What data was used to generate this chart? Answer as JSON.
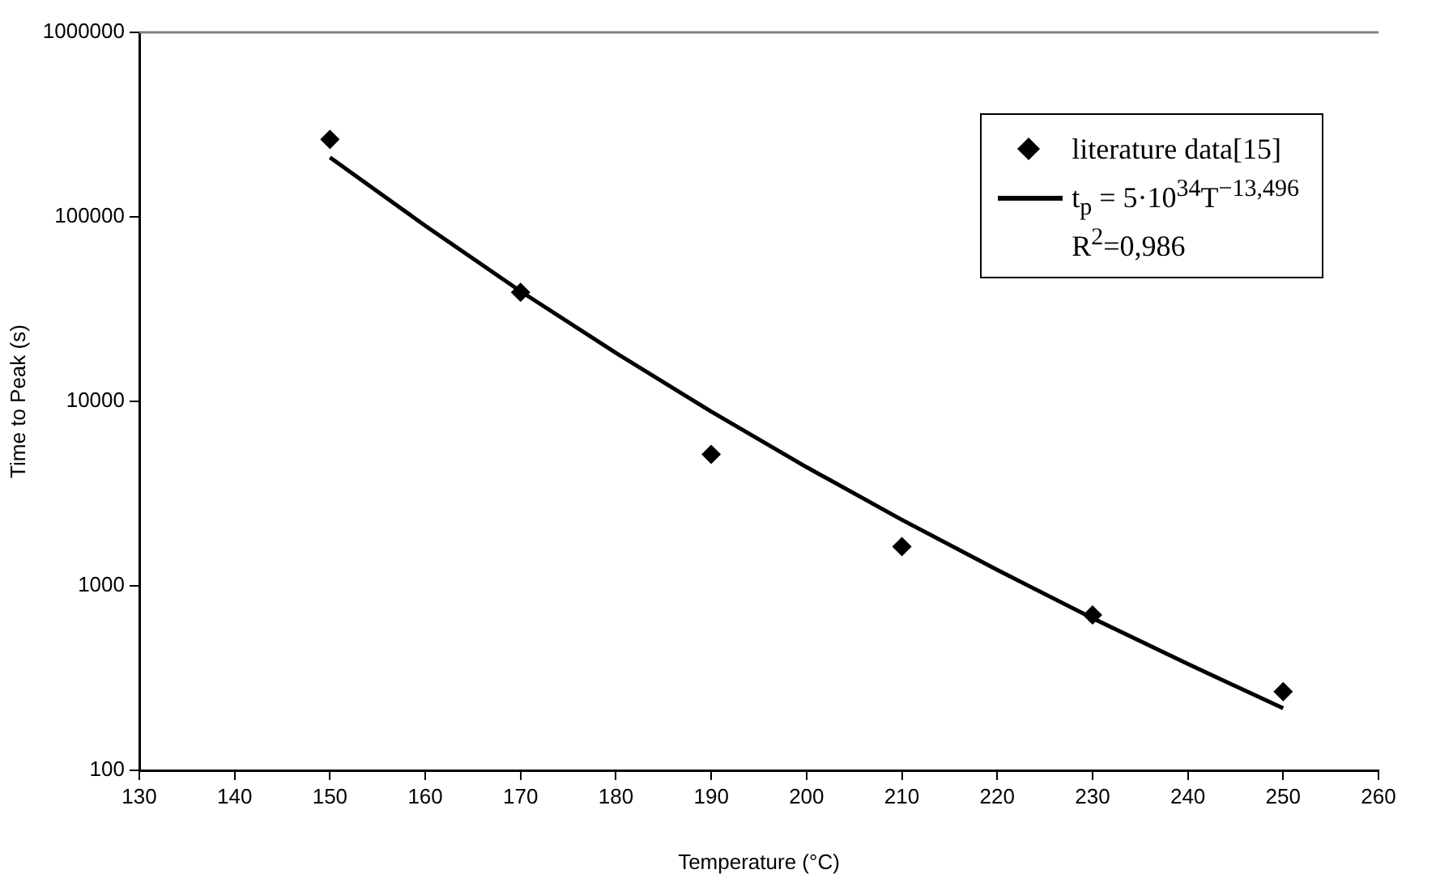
{
  "chart_data": {
    "type": "scatter",
    "xlabel": "Temperature (°C)",
    "ylabel": "Time to Peak (s)",
    "xlim": [
      130,
      260
    ],
    "xticks": [
      130,
      140,
      150,
      160,
      170,
      180,
      190,
      200,
      210,
      220,
      230,
      240,
      250,
      260
    ],
    "ylim": [
      100,
      1000000
    ],
    "yticks": [
      100,
      1000,
      10000,
      100000,
      1000000
    ],
    "log": "y",
    "grid": false,
    "legend": "top right",
    "series": [
      {
        "name": "literature data[15]",
        "marker": "diamond",
        "color": "#000000",
        "x": [
          150,
          170,
          190,
          210,
          230,
          250
        ],
        "values": [
          263000,
          39000,
          5160,
          1630,
          695,
          267
        ]
      },
      {
        "name": "t$_{p}$ = 5·10$^{34}$T$^{−13,496}$",
        "type": "line",
        "marker": "none",
        "line_style": "solid",
        "color": "#000000",
        "x": [
          150,
          160,
          170,
          180,
          190,
          200,
          210,
          220,
          230,
          240,
          250
        ],
        "values": [
          210000,
          89500,
          39500,
          18300,
          8800,
          4400,
          2280,
          1220,
          668,
          377,
          217
        ]
      }
    ],
    "annotations": [
      "R$^{2}$=0,986"
    ]
  }
}
